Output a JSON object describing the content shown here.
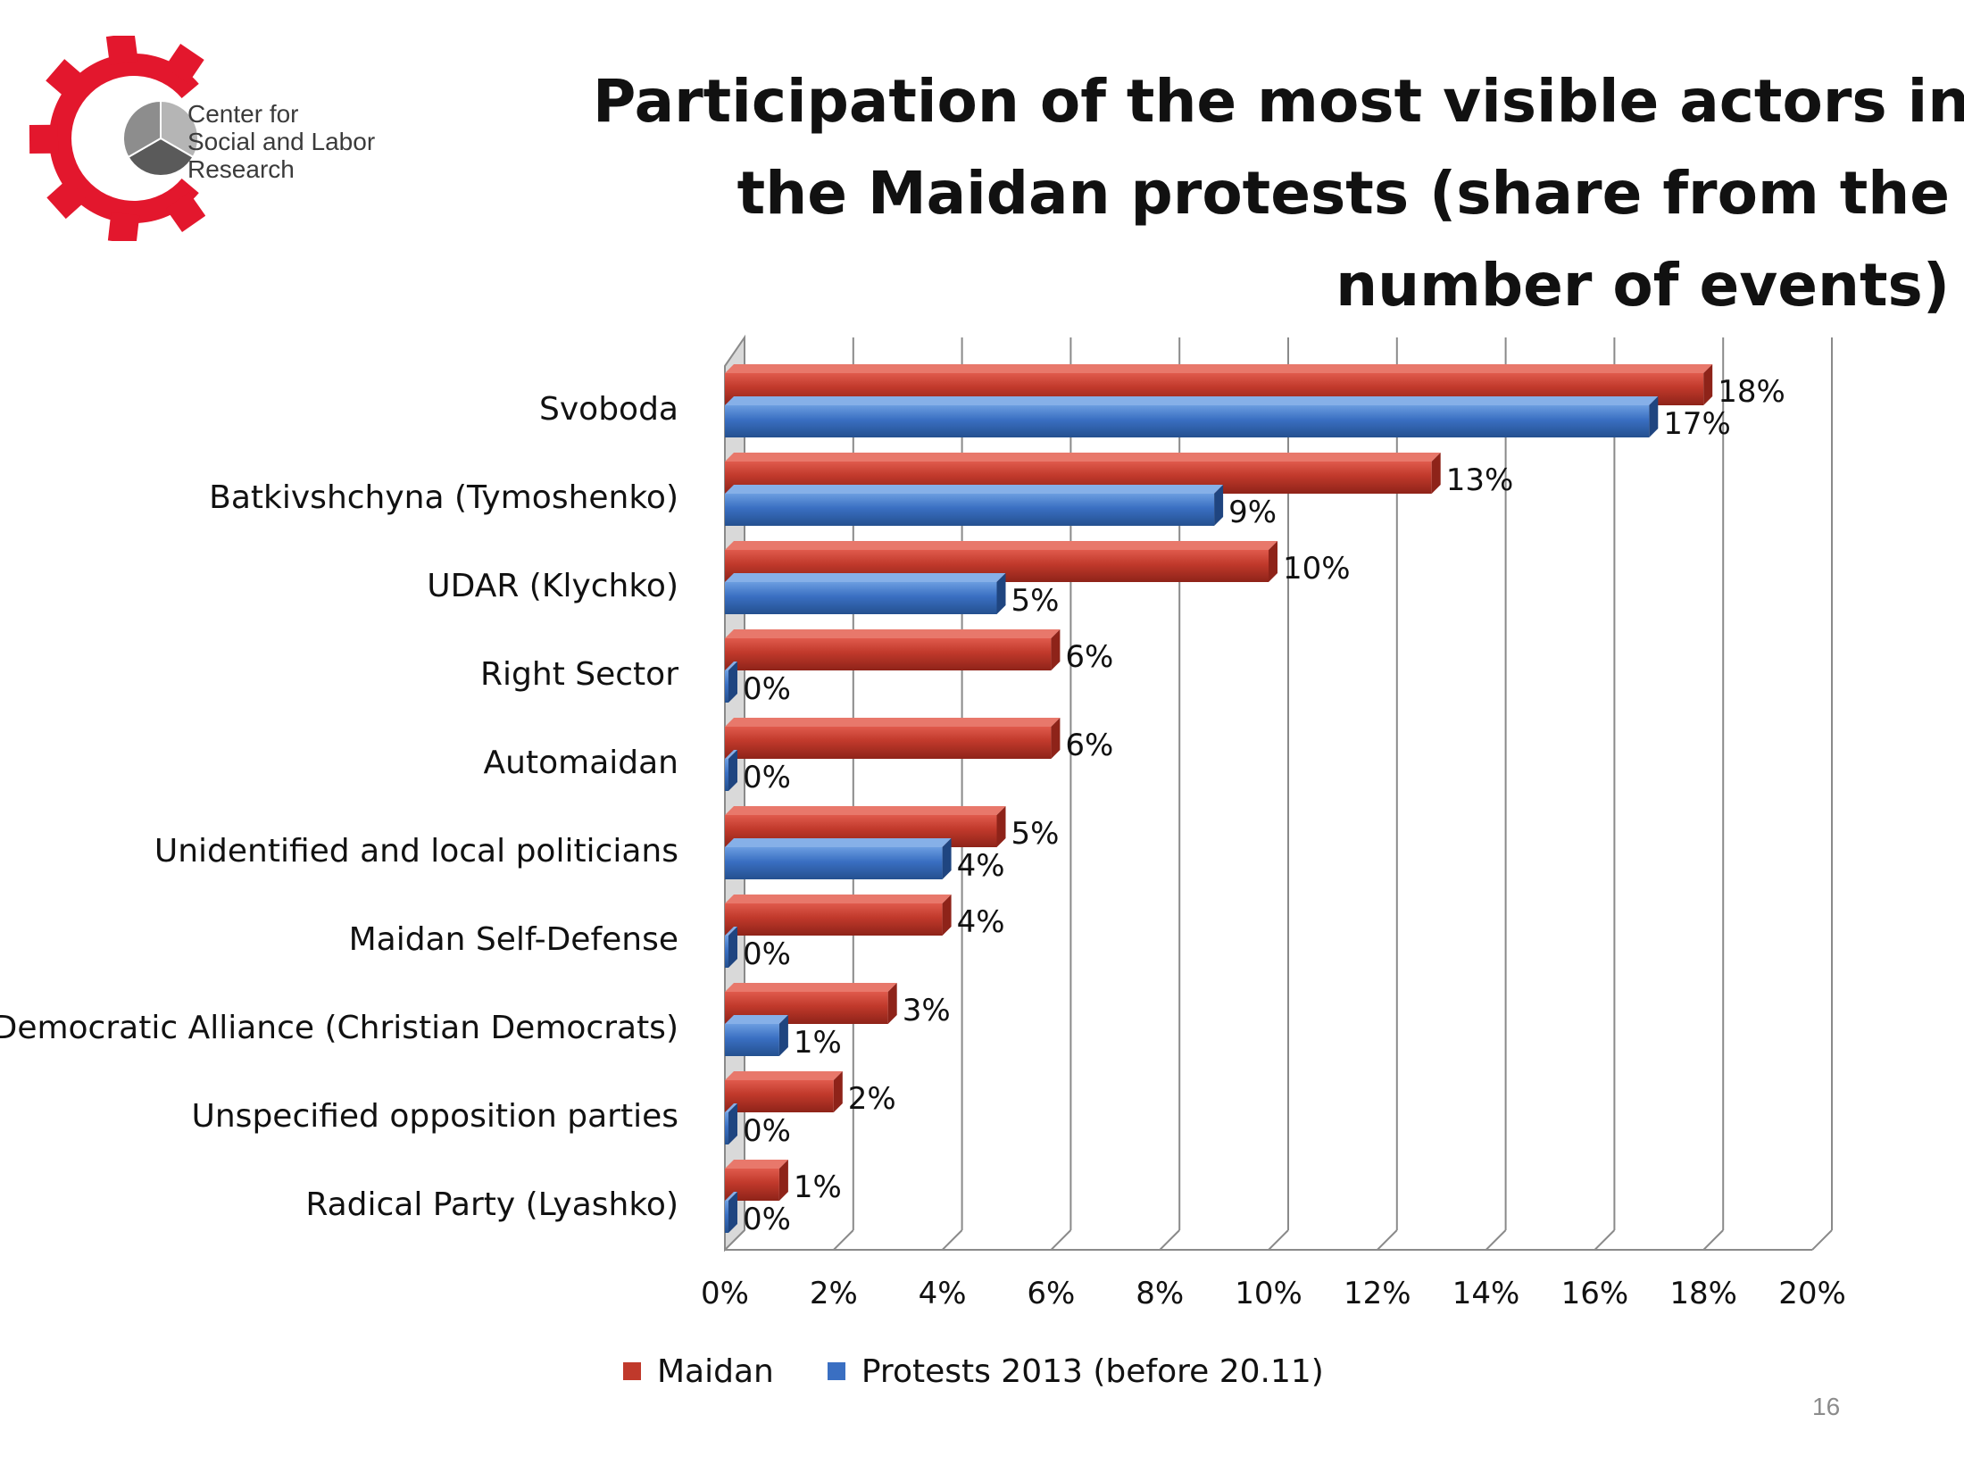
{
  "logo": {
    "lines": [
      "Center for",
      "Social and Labor",
      "Research"
    ],
    "gear_color": "#e3172d"
  },
  "title": {
    "lines": [
      "Participation of the most visible actors in",
      "the Maidan protests (share from the",
      "number of events)"
    ]
  },
  "page_number": "16",
  "chart_data": {
    "type": "bar",
    "orientation": "horizontal",
    "style": "3d-clustered",
    "title": "Participation of the most visible actors in the Maidan protests (share from the number of events)",
    "categories": [
      "Svoboda",
      "Batkivshchyna (Tymoshenko)",
      "UDAR (Klychko)",
      "Right Sector",
      "Automaidan",
      "Unidentified and local politicians",
      "Maidan Self-Defense",
      "Democratic Alliance (Christian Democrats)",
      "Unspecified opposition parties",
      "Radical Party (Lyashko)"
    ],
    "series": [
      {
        "name": "Maidan",
        "color": "#c0392b",
        "values": [
          18,
          13,
          10,
          6,
          6,
          5,
          4,
          3,
          2,
          1
        ],
        "labels": [
          "18%",
          "13%",
          "10%",
          "6%",
          "6%",
          "5%",
          "4%",
          "3%",
          "2%",
          "1%"
        ]
      },
      {
        "name": "Protests 2013 (before 20.11)",
        "color": "#3a6fc2",
        "values": [
          17,
          9,
          5,
          0,
          0,
          4,
          0,
          1,
          0,
          0
        ],
        "labels": [
          "17%",
          "9%",
          "5%",
          "0%",
          "0%",
          "4%",
          "0%",
          "1%",
          "0%",
          "0%"
        ]
      }
    ],
    "xlim": [
      0,
      20
    ],
    "x_ticks": [
      "0%",
      "2%",
      "4%",
      "6%",
      "8%",
      "10%",
      "12%",
      "14%",
      "16%",
      "18%",
      "20%"
    ],
    "grid": true,
    "legend_position": "bottom"
  }
}
